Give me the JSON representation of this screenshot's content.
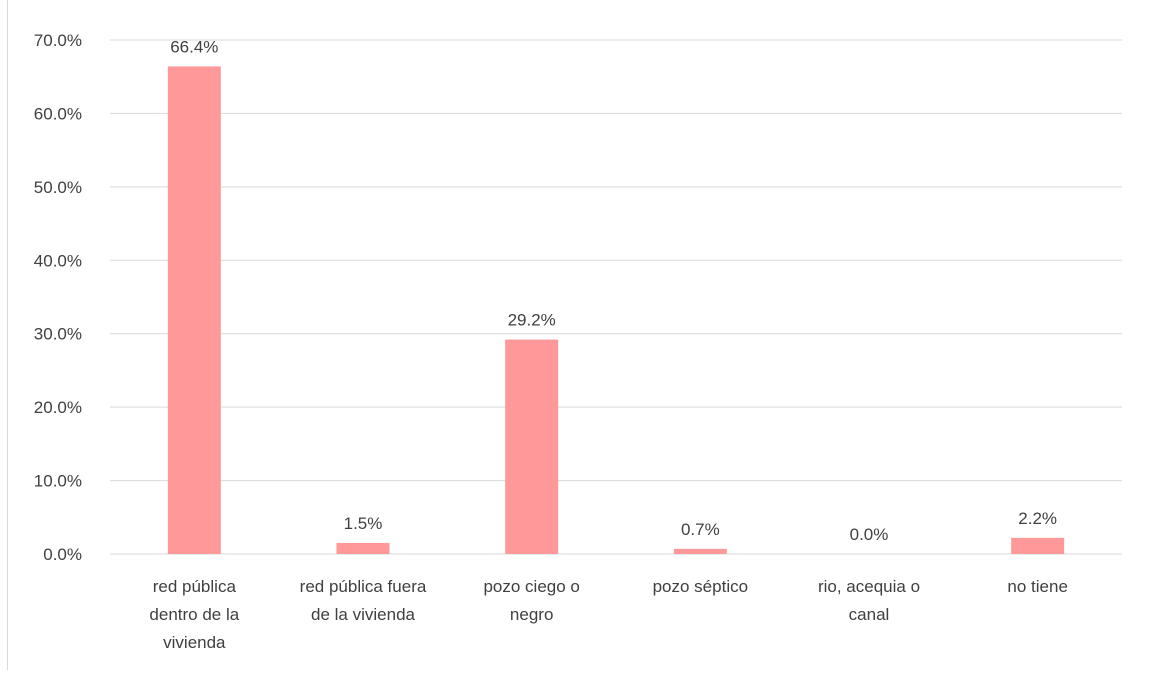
{
  "chart_data": {
    "type": "bar",
    "title": "",
    "xlabel": "",
    "ylabel": "",
    "categories": [
      [
        "red pública",
        "dentro de la",
        "vivienda"
      ],
      [
        "red pública fuera",
        "de la vivienda"
      ],
      [
        "pozo ciego o",
        "negro"
      ],
      [
        "pozo séptico"
      ],
      [
        "rio, acequia o",
        "canal"
      ],
      [
        "no tiene"
      ]
    ],
    "values": [
      66.4,
      1.5,
      29.2,
      0.7,
      0.0,
      2.2
    ],
    "value_labels": [
      "66.4%",
      "1.5%",
      "29.2%",
      "0.7%",
      "0.0%",
      "2.2%"
    ],
    "ylim": [
      0,
      70
    ],
    "yticks": [
      0,
      10,
      20,
      30,
      40,
      50,
      60,
      70
    ],
    "ytick_labels": [
      "0.0%",
      "10.0%",
      "20.0%",
      "30.0%",
      "40.0%",
      "50.0%",
      "60.0%",
      "70.0%"
    ],
    "grid": true,
    "legend": "none",
    "bar_color": "#ff9999",
    "grid_color": "#d9d9d9"
  }
}
